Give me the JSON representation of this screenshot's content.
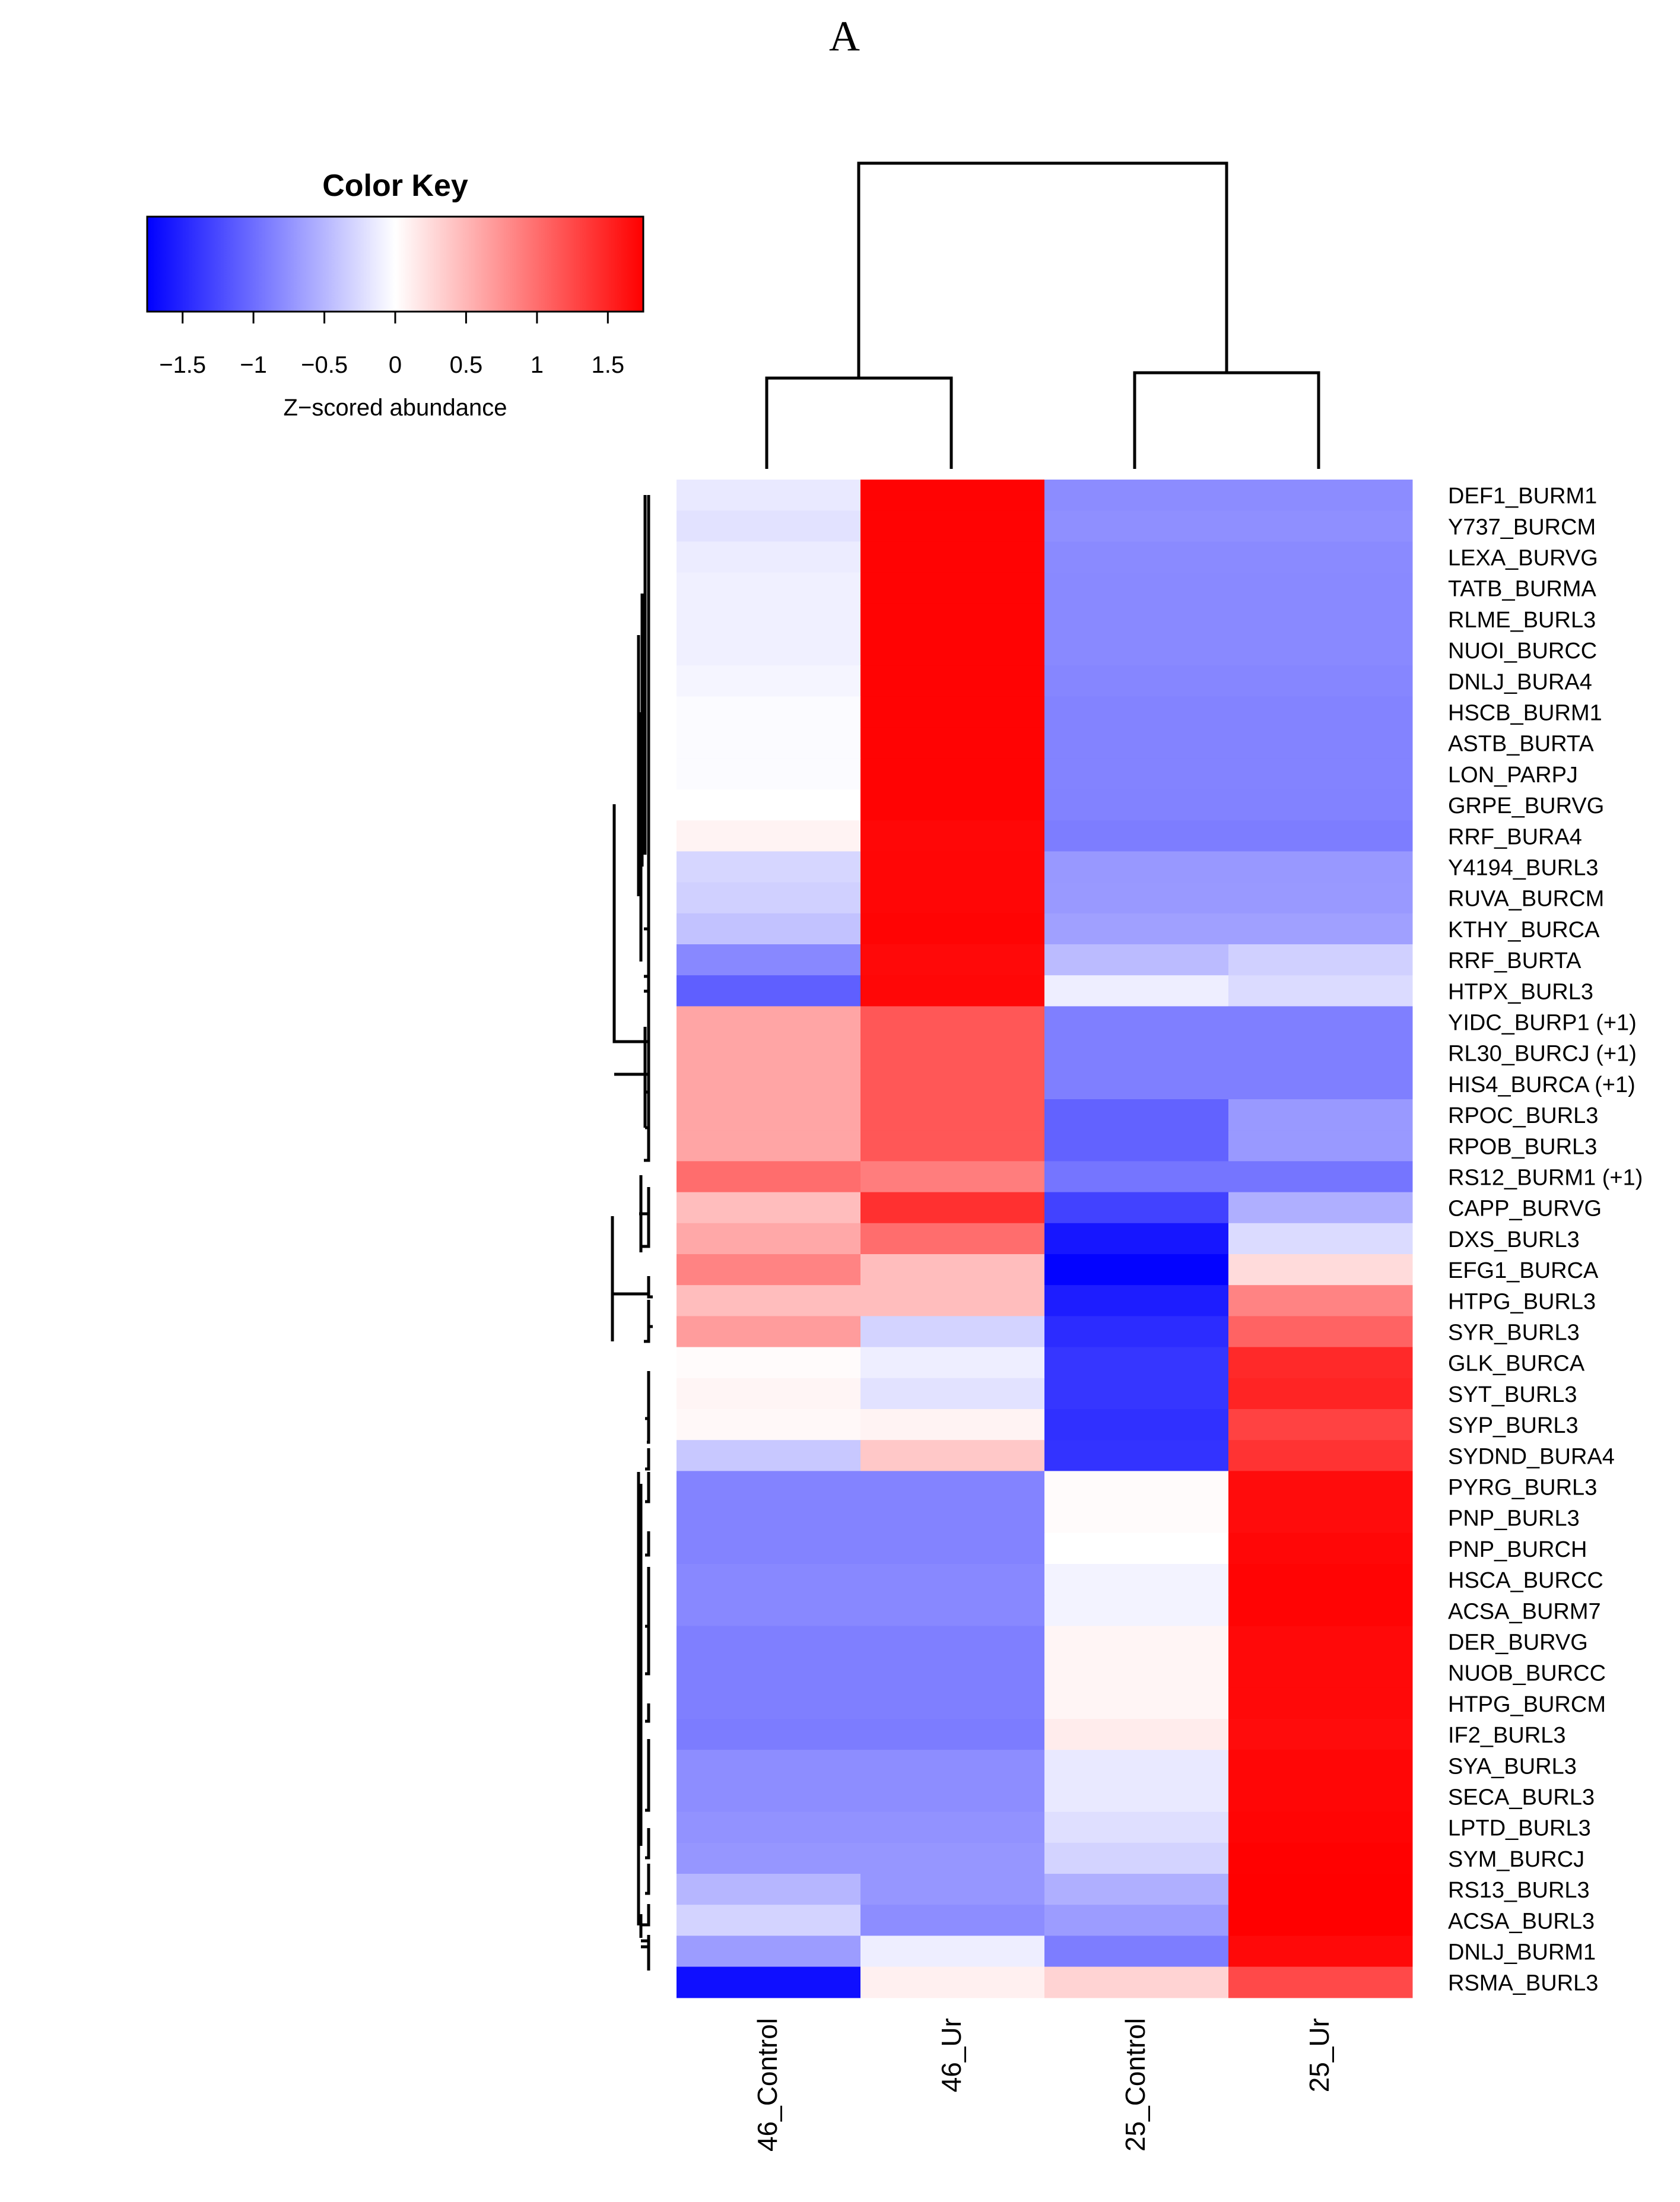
{
  "panel_label": "A",
  "chart_data": {
    "type": "heatmap",
    "title": "",
    "columns": [
      "46_Control",
      "46_Ur",
      "25_Control",
      "25_Ur"
    ],
    "rows": [
      "DEF1_BURM1",
      "Y737_BURCM",
      "LEXA_BURVG",
      "TATB_BURMA",
      "RLME_BURL3",
      "NUOI_BURCC",
      "DNLJ_BURA4",
      "HSCB_BURM1",
      "ASTB_BURTA",
      "LON_PARPJ",
      "GRPE_BURVG",
      "RRF_BURA4",
      "Y4194_BURL3",
      "RUVA_BURCM",
      "KTHY_BURCA",
      "RRF_BURTA",
      "HTPX_BURL3",
      "YIDC_BURP1 (+1)",
      "RL30_BURCJ (+1)",
      "HIS4_BURCA (+1)",
      "RPOC_BURL3",
      "RPOB_BURL3",
      "RS12_BURM1 (+1)",
      "CAPP_BURVG",
      "DXS_BURL3",
      "EFG1_BURCA",
      "HTPG_BURL3",
      "SYR_BURL3",
      "GLK_BURCA",
      "SYT_BURL3",
      "SYP_BURL3",
      "SYDND_BURA4",
      "PYRG_BURL3",
      "PNP_BURL3",
      "PNP_BURCH",
      "HSCA_BURCC",
      "ACSA_BURM7",
      "DER_BURVG",
      "NUOB_BURCC",
      "HTPG_BURCM",
      "IF2_BURL3",
      "SYA_BURL3",
      "SECA_BURL3",
      "LPTD_BURL3",
      "SYM_BURCJ",
      "RS13_BURL3",
      "ACSA_BURL3",
      "DNLJ_BURM1",
      "RSMA_BURL3"
    ],
    "values": [
      [
        -0.15,
        1.73,
        -0.79,
        -0.79
      ],
      [
        -0.2,
        1.73,
        -0.77,
        -0.77
      ],
      [
        -0.13,
        1.73,
        -0.8,
        -0.8
      ],
      [
        -0.1,
        1.73,
        -0.81,
        -0.81
      ],
      [
        -0.1,
        1.73,
        -0.81,
        -0.81
      ],
      [
        -0.1,
        1.73,
        -0.81,
        -0.81
      ],
      [
        -0.07,
        1.73,
        -0.83,
        -0.83
      ],
      [
        -0.03,
        1.73,
        -0.85,
        -0.85
      ],
      [
        -0.03,
        1.73,
        -0.85,
        -0.85
      ],
      [
        -0.03,
        1.73,
        -0.85,
        -0.85
      ],
      [
        0.0,
        1.73,
        -0.86,
        -0.86
      ],
      [
        0.08,
        1.7,
        -0.89,
        -0.89
      ],
      [
        -0.28,
        1.71,
        -0.71,
        -0.71
      ],
      [
        -0.32,
        1.71,
        -0.7,
        -0.7
      ],
      [
        -0.42,
        1.72,
        -0.65,
        -0.65
      ],
      [
        -0.82,
        1.69,
        -0.47,
        -0.32
      ],
      [
        -1.1,
        1.7,
        -0.12,
        -0.25
      ],
      [
        0.62,
        1.15,
        -0.88,
        -0.88
      ],
      [
        0.62,
        1.15,
        -0.88,
        -0.88
      ],
      [
        0.62,
        1.15,
        -0.88,
        -0.88
      ],
      [
        0.62,
        1.15,
        -1.08,
        -0.7
      ],
      [
        0.62,
        1.15,
        -1.08,
        -0.7
      ],
      [
        1.0,
        0.89,
        -0.95,
        -0.95
      ],
      [
        0.45,
        1.42,
        -1.3,
        -0.55
      ],
      [
        0.6,
        1.0,
        -1.6,
        -0.25
      ],
      [
        0.85,
        0.45,
        -1.73,
        0.25
      ],
      [
        0.45,
        0.45,
        -1.55,
        0.85
      ],
      [
        0.68,
        -0.3,
        -1.45,
        1.07
      ],
      [
        0.03,
        -0.12,
        -1.38,
        1.47
      ],
      [
        0.07,
        -0.2,
        -1.38,
        1.5
      ],
      [
        0.05,
        0.08,
        -1.42,
        1.3
      ],
      [
        -0.38,
        0.38,
        -1.4,
        1.4
      ],
      [
        -0.85,
        -0.85,
        0.03,
        1.67
      ],
      [
        -0.85,
        -0.85,
        0.03,
        1.67
      ],
      [
        -0.85,
        -0.85,
        0.0,
        1.7
      ],
      [
        -0.82,
        -0.82,
        -0.08,
        1.72
      ],
      [
        -0.82,
        -0.82,
        -0.08,
        1.72
      ],
      [
        -0.88,
        -0.88,
        0.07,
        1.69
      ],
      [
        -0.88,
        -0.88,
        0.07,
        1.69
      ],
      [
        -0.88,
        -0.88,
        0.07,
        1.69
      ],
      [
        -0.9,
        -0.9,
        0.13,
        1.67
      ],
      [
        -0.78,
        -0.78,
        -0.15,
        1.71
      ],
      [
        -0.78,
        -0.78,
        -0.15,
        1.71
      ],
      [
        -0.75,
        -0.75,
        -0.22,
        1.72
      ],
      [
        -0.72,
        -0.72,
        -0.3,
        1.74
      ],
      [
        -0.5,
        -0.72,
        -0.55,
        1.77
      ],
      [
        -0.3,
        -0.78,
        -0.68,
        1.76
      ],
      [
        -0.68,
        -0.12,
        -0.89,
        1.69
      ],
      [
        -1.65,
        0.1,
        0.3,
        1.25
      ]
    ],
    "color_scale": {
      "min": -1.75,
      "max": 1.75,
      "low": "#0000ff",
      "mid": "#ffffff",
      "high": "#ff0000"
    },
    "color_key": {
      "title": "Color Key",
      "xlabel": "Z−scored abundance",
      "tick_values": [
        -1.5,
        -1,
        -0.5,
        0,
        0.5,
        1,
        1.5
      ],
      "tick_labels": [
        "−1.5",
        "−1",
        "−0.5",
        "0",
        "0.5",
        "1",
        "1.5"
      ],
      "range": [
        -1.75,
        1.75
      ]
    },
    "column_dendrogram": "((46_Control,46_Ur),(25_Control,25_Ur))",
    "row_dendrogram": "clusters: [rows 1–17], [rows 18–25], [rows 26–32], [rows 33–49]"
  }
}
